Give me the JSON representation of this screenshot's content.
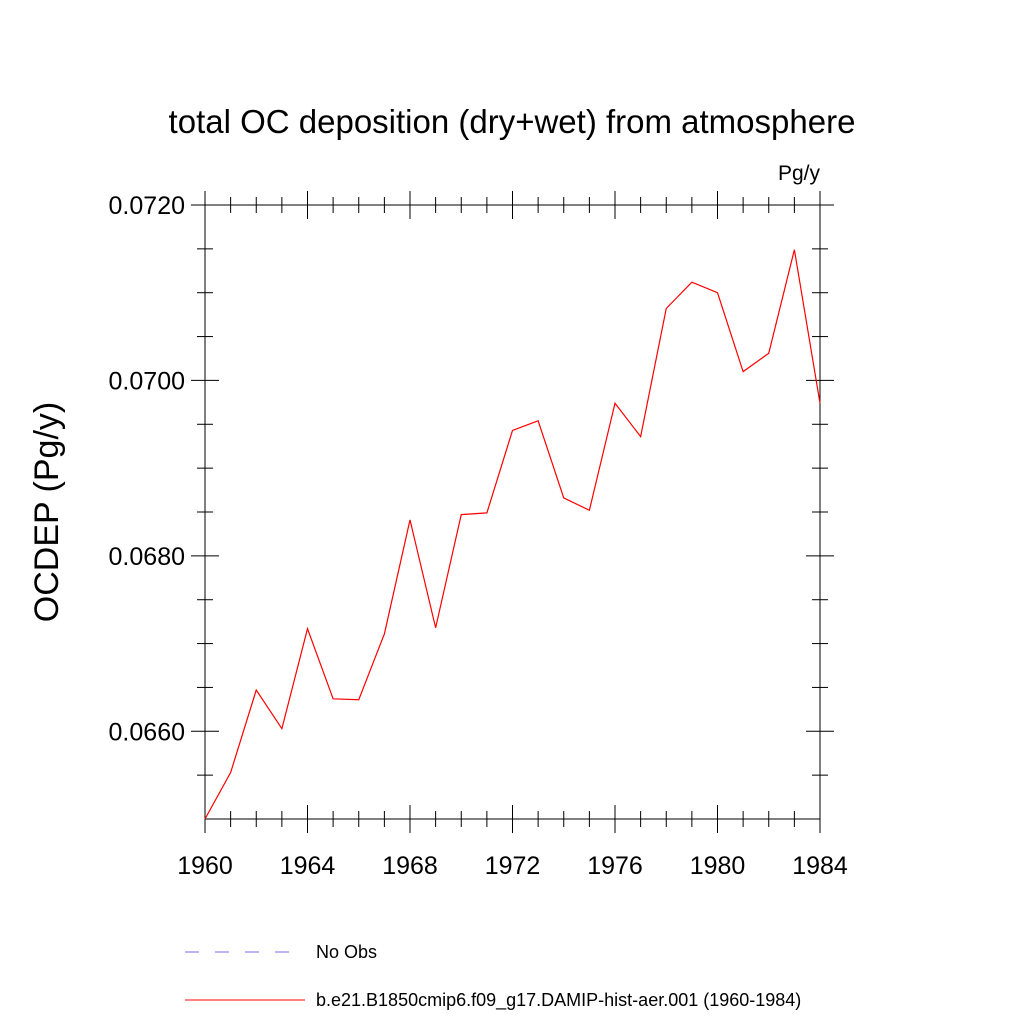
{
  "chart_data": {
    "type": "line",
    "title": "total OC deposition (dry+wet) from atmosphere",
    "units_label": "Pg/y",
    "ylabel": "OCDEP  (Pg/y)",
    "xlabel": "",
    "xlim": [
      1960,
      1984
    ],
    "ylim": [
      0.065,
      0.072
    ],
    "x_ticks": [
      1960,
      1964,
      1968,
      1972,
      1976,
      1980,
      1984
    ],
    "x_tick_labels": [
      "1960",
      "1964",
      "1968",
      "1972",
      "1976",
      "1980",
      "1984"
    ],
    "y_ticks": [
      0.066,
      0.068,
      0.07,
      0.072
    ],
    "y_tick_labels": [
      "0.0660",
      "0.0680",
      "0.0700",
      "0.0720"
    ],
    "y_minor_step": 0.0005,
    "x_minor_step": 1,
    "grid": false,
    "legend_position": "bottom",
    "x": [
      1960,
      1961,
      1962,
      1963,
      1964,
      1965,
      1966,
      1967,
      1968,
      1969,
      1970,
      1971,
      1972,
      1973,
      1974,
      1975,
      1976,
      1977,
      1978,
      1979,
      1980,
      1981,
      1982,
      1983,
      1984
    ],
    "series": [
      {
        "name": "b.e21.B1850cmip6.f09_g17.DAMIP-hist-aer.001 (1960-1984)",
        "color": "#ff0000",
        "dash": "solid",
        "values": [
          0.065,
          0.06553,
          0.06647,
          0.06603,
          0.06717,
          0.06637,
          0.06636,
          0.06711,
          0.06841,
          0.06718,
          0.06847,
          0.06849,
          0.06943,
          0.06954,
          0.06866,
          0.06852,
          0.06974,
          0.06936,
          0.07082,
          0.07112,
          0.071,
          0.0701,
          0.07031,
          0.07149,
          0.06974
        ]
      }
    ],
    "legend": [
      {
        "label": "No Obs",
        "color": "#7b68ee",
        "dash": "dashed"
      },
      {
        "label": "b.e21.B1850cmip6.f09_g17.DAMIP-hist-aer.001 (1960-1984)",
        "color": "#ff0000",
        "dash": "solid"
      }
    ]
  }
}
